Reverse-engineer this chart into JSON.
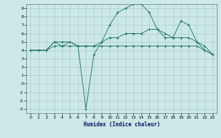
{
  "xlabel": "Humidex (Indice chaleur)",
  "bg_color": "#cce8e8",
  "grid_color": "#aacccc",
  "line_color": "#2a7a6a",
  "xlim": [
    -0.5,
    23.5
  ],
  "ylim": [
    -3.5,
    9.5
  ],
  "xticks": [
    0,
    1,
    2,
    3,
    4,
    5,
    6,
    7,
    8,
    9,
    10,
    11,
    12,
    13,
    14,
    15,
    16,
    17,
    18,
    19,
    20,
    21,
    22,
    23
  ],
  "yticks": [
    -3,
    -2,
    -1,
    0,
    1,
    2,
    3,
    4,
    5,
    6,
    7,
    8,
    9
  ],
  "line1_x": [
    0,
    1,
    2,
    3,
    4,
    5,
    6,
    7,
    8,
    9,
    10,
    11,
    12,
    13,
    14,
    15,
    16,
    17,
    18,
    19,
    20,
    21,
    22,
    23
  ],
  "line1_y": [
    4,
    4,
    4,
    5,
    4.5,
    5,
    4.5,
    -3,
    3.5,
    5,
    7,
    8.5,
    9,
    9.5,
    9.5,
    8.5,
    6.5,
    5.5,
    5.5,
    7.5,
    7,
    5,
    4,
    3.5
  ],
  "line2_x": [
    0,
    1,
    2,
    3,
    4,
    5,
    6,
    7,
    8,
    9,
    10,
    11,
    12,
    13,
    14,
    15,
    16,
    17,
    18,
    19,
    20,
    21,
    22,
    23
  ],
  "line2_y": [
    4,
    4,
    4,
    5,
    5,
    5,
    4.5,
    4.5,
    4.5,
    5,
    5.5,
    5.5,
    6,
    6,
    6,
    6.5,
    6.5,
    6,
    5.5,
    5.5,
    5.5,
    5,
    4.5,
    3.5
  ],
  "line3_x": [
    0,
    1,
    2,
    3,
    4,
    5,
    6,
    7,
    8,
    9,
    10,
    11,
    12,
    13,
    14,
    15,
    16,
    17,
    18,
    19,
    20,
    21,
    22,
    23
  ],
  "line3_y": [
    4,
    4,
    4,
    4.5,
    4.5,
    4.5,
    4.5,
    4.5,
    4.5,
    4.5,
    4.5,
    4.5,
    4.5,
    4.5,
    4.5,
    4.5,
    4.5,
    4.5,
    4.5,
    4.5,
    4.5,
    4.5,
    4,
    3.5
  ]
}
